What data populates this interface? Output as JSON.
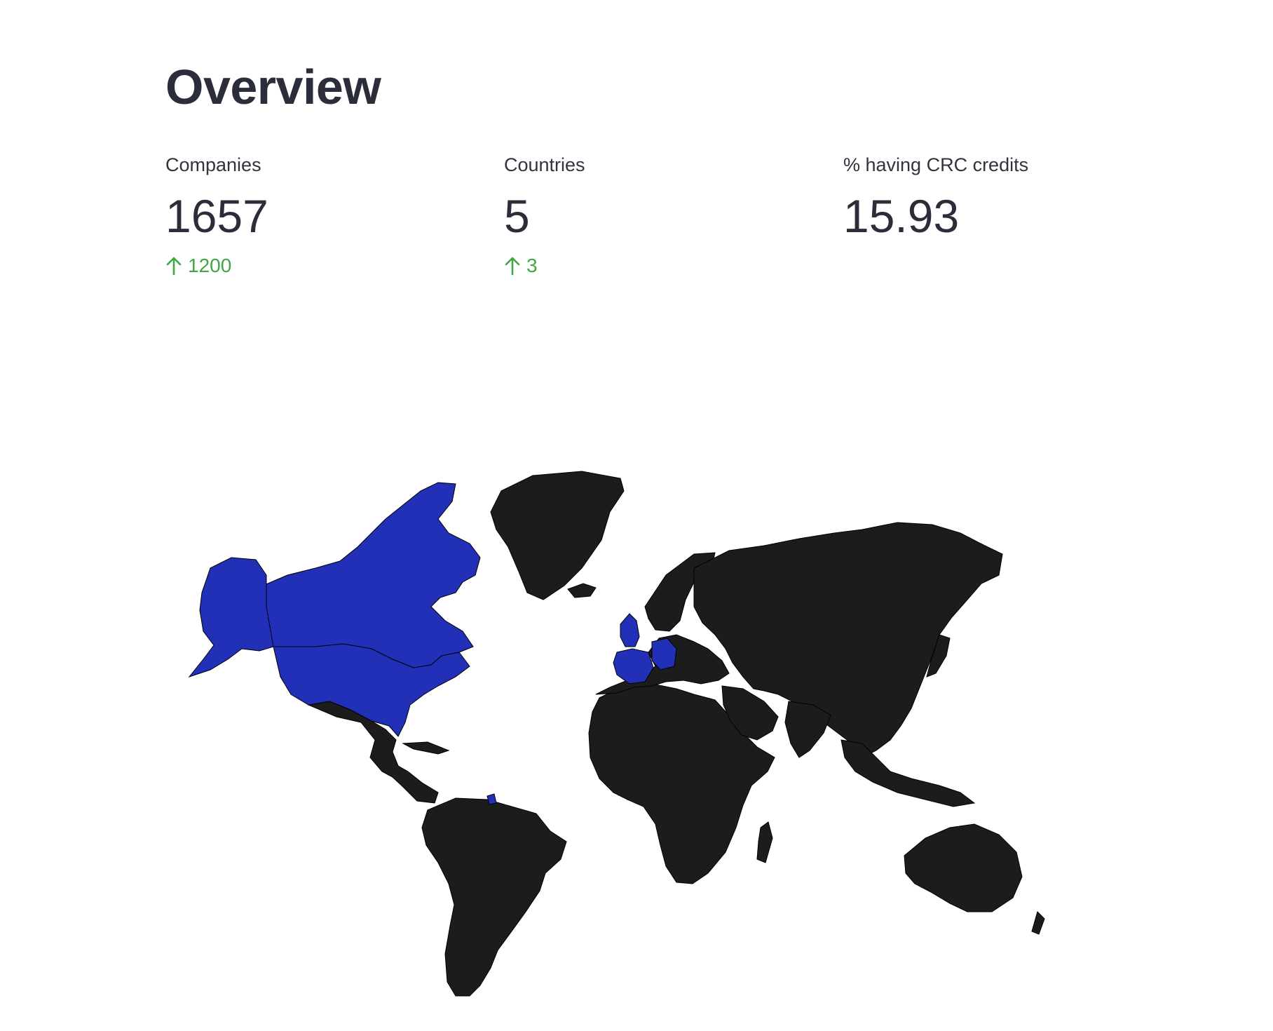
{
  "header": {
    "title": "Overview"
  },
  "metrics": [
    {
      "label": "Companies",
      "value": "1657",
      "delta": "1200"
    },
    {
      "label": "Countries",
      "value": "5",
      "delta": "3"
    },
    {
      "label": "% having CRC credits",
      "value": "15.93",
      "delta": ""
    }
  ],
  "colors": {
    "delta_positive": "#3fa845",
    "highlight_country": "#2230b8",
    "other_country": "#1c1c1c",
    "border": "#000000"
  },
  "map": {
    "highlighted_countries": [
      "Canada",
      "United States",
      "United Kingdom",
      "France",
      "Germany"
    ]
  }
}
